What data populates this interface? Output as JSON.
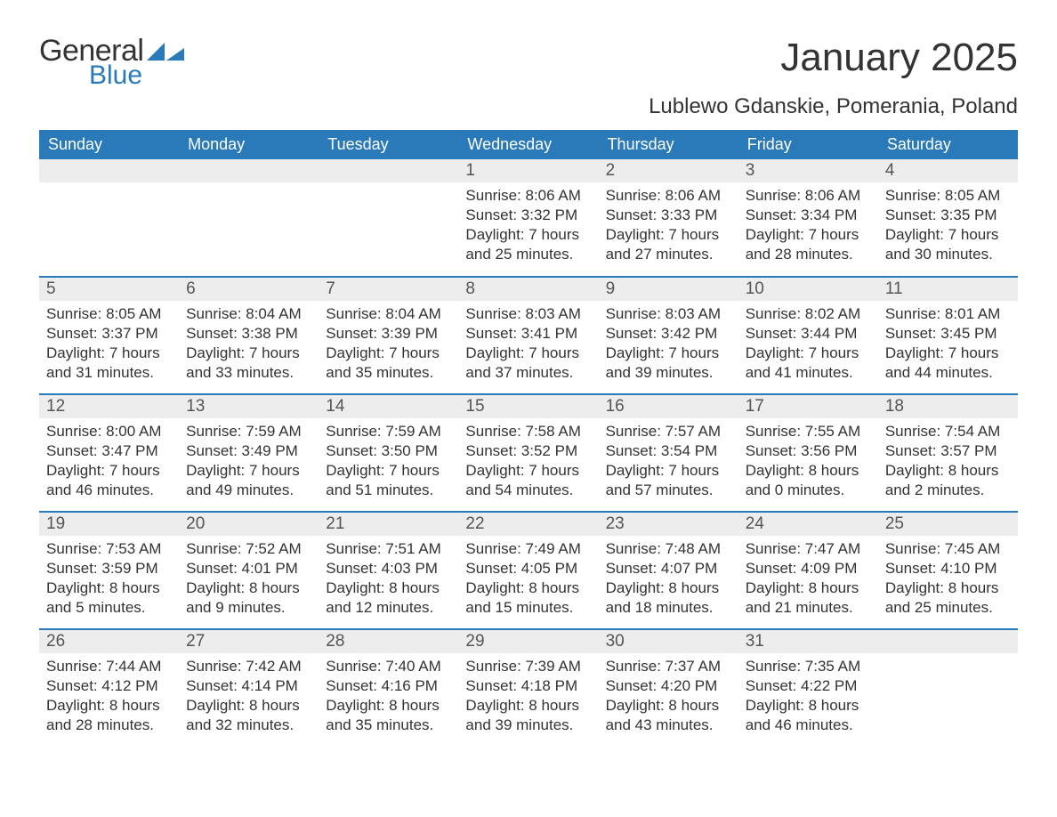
{
  "brand": {
    "general": "General",
    "blue": "Blue",
    "tri_color": "#2a7ab9"
  },
  "title": "January 2025",
  "subtitle": "Lublewo Gdanskie, Pomerania, Poland",
  "colors": {
    "header_bg": "#2a7ab9",
    "header_text": "#ffffff",
    "row_border": "#2a7ab9",
    "daynum_bg": "#ededed",
    "body_text": "#333333",
    "page_bg": "#ffffff"
  },
  "fontsizes": {
    "title": 44,
    "subtitle": 24,
    "weekday": 18,
    "daynum": 19,
    "cell": 17
  },
  "weekdays": [
    "Sunday",
    "Monday",
    "Tuesday",
    "Wednesday",
    "Thursday",
    "Friday",
    "Saturday"
  ],
  "weeks": [
    [
      null,
      null,
      null,
      {
        "d": "1",
        "sr": "Sunrise: 8:06 AM",
        "ss": "Sunset: 3:32 PM",
        "dl": "Daylight: 7 hours and 25 minutes."
      },
      {
        "d": "2",
        "sr": "Sunrise: 8:06 AM",
        "ss": "Sunset: 3:33 PM",
        "dl": "Daylight: 7 hours and 27 minutes."
      },
      {
        "d": "3",
        "sr": "Sunrise: 8:06 AM",
        "ss": "Sunset: 3:34 PM",
        "dl": "Daylight: 7 hours and 28 minutes."
      },
      {
        "d": "4",
        "sr": "Sunrise: 8:05 AM",
        "ss": "Sunset: 3:35 PM",
        "dl": "Daylight: 7 hours and 30 minutes."
      }
    ],
    [
      {
        "d": "5",
        "sr": "Sunrise: 8:05 AM",
        "ss": "Sunset: 3:37 PM",
        "dl": "Daylight: 7 hours and 31 minutes."
      },
      {
        "d": "6",
        "sr": "Sunrise: 8:04 AM",
        "ss": "Sunset: 3:38 PM",
        "dl": "Daylight: 7 hours and 33 minutes."
      },
      {
        "d": "7",
        "sr": "Sunrise: 8:04 AM",
        "ss": "Sunset: 3:39 PM",
        "dl": "Daylight: 7 hours and 35 minutes."
      },
      {
        "d": "8",
        "sr": "Sunrise: 8:03 AM",
        "ss": "Sunset: 3:41 PM",
        "dl": "Daylight: 7 hours and 37 minutes."
      },
      {
        "d": "9",
        "sr": "Sunrise: 8:03 AM",
        "ss": "Sunset: 3:42 PM",
        "dl": "Daylight: 7 hours and 39 minutes."
      },
      {
        "d": "10",
        "sr": "Sunrise: 8:02 AM",
        "ss": "Sunset: 3:44 PM",
        "dl": "Daylight: 7 hours and 41 minutes."
      },
      {
        "d": "11",
        "sr": "Sunrise: 8:01 AM",
        "ss": "Sunset: 3:45 PM",
        "dl": "Daylight: 7 hours and 44 minutes."
      }
    ],
    [
      {
        "d": "12",
        "sr": "Sunrise: 8:00 AM",
        "ss": "Sunset: 3:47 PM",
        "dl": "Daylight: 7 hours and 46 minutes."
      },
      {
        "d": "13",
        "sr": "Sunrise: 7:59 AM",
        "ss": "Sunset: 3:49 PM",
        "dl": "Daylight: 7 hours and 49 minutes."
      },
      {
        "d": "14",
        "sr": "Sunrise: 7:59 AM",
        "ss": "Sunset: 3:50 PM",
        "dl": "Daylight: 7 hours and 51 minutes."
      },
      {
        "d": "15",
        "sr": "Sunrise: 7:58 AM",
        "ss": "Sunset: 3:52 PM",
        "dl": "Daylight: 7 hours and 54 minutes."
      },
      {
        "d": "16",
        "sr": "Sunrise: 7:57 AM",
        "ss": "Sunset: 3:54 PM",
        "dl": "Daylight: 7 hours and 57 minutes."
      },
      {
        "d": "17",
        "sr": "Sunrise: 7:55 AM",
        "ss": "Sunset: 3:56 PM",
        "dl": "Daylight: 8 hours and 0 minutes."
      },
      {
        "d": "18",
        "sr": "Sunrise: 7:54 AM",
        "ss": "Sunset: 3:57 PM",
        "dl": "Daylight: 8 hours and 2 minutes."
      }
    ],
    [
      {
        "d": "19",
        "sr": "Sunrise: 7:53 AM",
        "ss": "Sunset: 3:59 PM",
        "dl": "Daylight: 8 hours and 5 minutes."
      },
      {
        "d": "20",
        "sr": "Sunrise: 7:52 AM",
        "ss": "Sunset: 4:01 PM",
        "dl": "Daylight: 8 hours and 9 minutes."
      },
      {
        "d": "21",
        "sr": "Sunrise: 7:51 AM",
        "ss": "Sunset: 4:03 PM",
        "dl": "Daylight: 8 hours and 12 minutes."
      },
      {
        "d": "22",
        "sr": "Sunrise: 7:49 AM",
        "ss": "Sunset: 4:05 PM",
        "dl": "Daylight: 8 hours and 15 minutes."
      },
      {
        "d": "23",
        "sr": "Sunrise: 7:48 AM",
        "ss": "Sunset: 4:07 PM",
        "dl": "Daylight: 8 hours and 18 minutes."
      },
      {
        "d": "24",
        "sr": "Sunrise: 7:47 AM",
        "ss": "Sunset: 4:09 PM",
        "dl": "Daylight: 8 hours and 21 minutes."
      },
      {
        "d": "25",
        "sr": "Sunrise: 7:45 AM",
        "ss": "Sunset: 4:10 PM",
        "dl": "Daylight: 8 hours and 25 minutes."
      }
    ],
    [
      {
        "d": "26",
        "sr": "Sunrise: 7:44 AM",
        "ss": "Sunset: 4:12 PM",
        "dl": "Daylight: 8 hours and 28 minutes."
      },
      {
        "d": "27",
        "sr": "Sunrise: 7:42 AM",
        "ss": "Sunset: 4:14 PM",
        "dl": "Daylight: 8 hours and 32 minutes."
      },
      {
        "d": "28",
        "sr": "Sunrise: 7:40 AM",
        "ss": "Sunset: 4:16 PM",
        "dl": "Daylight: 8 hours and 35 minutes."
      },
      {
        "d": "29",
        "sr": "Sunrise: 7:39 AM",
        "ss": "Sunset: 4:18 PM",
        "dl": "Daylight: 8 hours and 39 minutes."
      },
      {
        "d": "30",
        "sr": "Sunrise: 7:37 AM",
        "ss": "Sunset: 4:20 PM",
        "dl": "Daylight: 8 hours and 43 minutes."
      },
      {
        "d": "31",
        "sr": "Sunrise: 7:35 AM",
        "ss": "Sunset: 4:22 PM",
        "dl": "Daylight: 8 hours and 46 minutes."
      },
      null
    ]
  ]
}
